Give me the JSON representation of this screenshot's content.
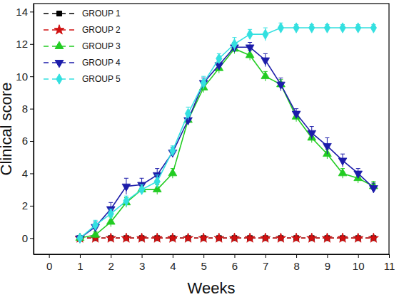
{
  "chart_data": {
    "type": "line",
    "x_label": "Weeks",
    "y_label": "Clinical score",
    "x": [
      1,
      1.5,
      2,
      2.5,
      3,
      3.5,
      4,
      4.5,
      5,
      5.5,
      6,
      6.5,
      7,
      7.5,
      8,
      8.5,
      9,
      9.5,
      10,
      10.5
    ],
    "xlim": [
      -0.5,
      11
    ],
    "xticks": [
      0,
      1,
      2,
      3,
      4,
      5,
      6,
      7,
      8,
      9,
      10,
      11
    ],
    "ylim": [
      -1,
      14.5
    ],
    "yticks": [
      0,
      2,
      4,
      6,
      8,
      10,
      12,
      14
    ],
    "legend": "upper left",
    "series": [
      {
        "name": "GROUP 1",
        "color": "#000000",
        "marker": "square",
        "line_style": "dashed",
        "values": [
          0,
          0,
          0,
          0,
          0,
          0,
          0,
          0,
          0,
          0,
          0,
          0,
          0,
          0,
          0,
          0,
          0,
          0,
          0,
          0
        ]
      },
      {
        "name": "GROUP 2",
        "color": "#d01010",
        "marker": "star",
        "line_style": "dashed",
        "values": [
          0,
          0,
          0,
          0,
          0,
          0,
          0,
          0,
          0,
          0,
          0,
          0,
          0,
          0,
          0,
          0,
          0,
          0,
          0,
          0
        ]
      },
      {
        "name": "GROUP 3",
        "color": "#22cc22",
        "marker": "triangle",
        "line_style": "solid",
        "values": [
          0,
          0.2,
          1.0,
          2.2,
          3.0,
          3.0,
          4.0,
          7.3,
          9.3,
          10.5,
          11.7,
          11.3,
          10.0,
          9.5,
          7.5,
          6.2,
          5.2,
          4.0,
          3.7,
          3.2
        ],
        "errors": [
          0.1,
          0.2,
          0.3,
          0.3,
          0.3,
          0.3,
          0.3,
          0.3,
          0.3,
          0.3,
          0.3,
          0.3,
          0.3,
          0.3,
          0.3,
          0.3,
          0.3,
          0.3,
          0.3,
          0.3
        ]
      },
      {
        "name": "GROUP 4",
        "color": "#1c1caa",
        "marker": "triangle-down",
        "line_style": "solid",
        "values": [
          0,
          0.7,
          1.8,
          3.2,
          3.3,
          3.9,
          5.3,
          7.3,
          9.6,
          10.7,
          11.8,
          11.8,
          11.0,
          9.5,
          7.7,
          6.5,
          5.7,
          4.8,
          4.0,
          3.1
        ],
        "errors": [
          0.1,
          0.3,
          0.4,
          0.5,
          0.4,
          0.4,
          0.3,
          0.3,
          0.3,
          0.3,
          0.3,
          0.3,
          0.4,
          0.4,
          0.3,
          0.4,
          0.5,
          0.4,
          0.3,
          0.3
        ]
      },
      {
        "name": "GROUP 5",
        "color": "#33e0e0",
        "marker": "diamond",
        "line_style": "solid",
        "values": [
          0,
          0.8,
          1.5,
          2.3,
          3.0,
          3.5,
          5.4,
          7.7,
          9.6,
          11.1,
          12.0,
          12.6,
          12.6,
          13.0,
          13.0,
          13.0,
          13.0,
          13.0,
          13.0,
          13.0
        ],
        "errors": [
          0.1,
          0.3,
          0.3,
          0.3,
          0.3,
          0.4,
          0.3,
          0.4,
          0.4,
          0.3,
          0.4,
          0.3,
          0.4,
          0.3,
          0.2,
          0.2,
          0.2,
          0.2,
          0.2,
          0.2
        ]
      }
    ]
  }
}
